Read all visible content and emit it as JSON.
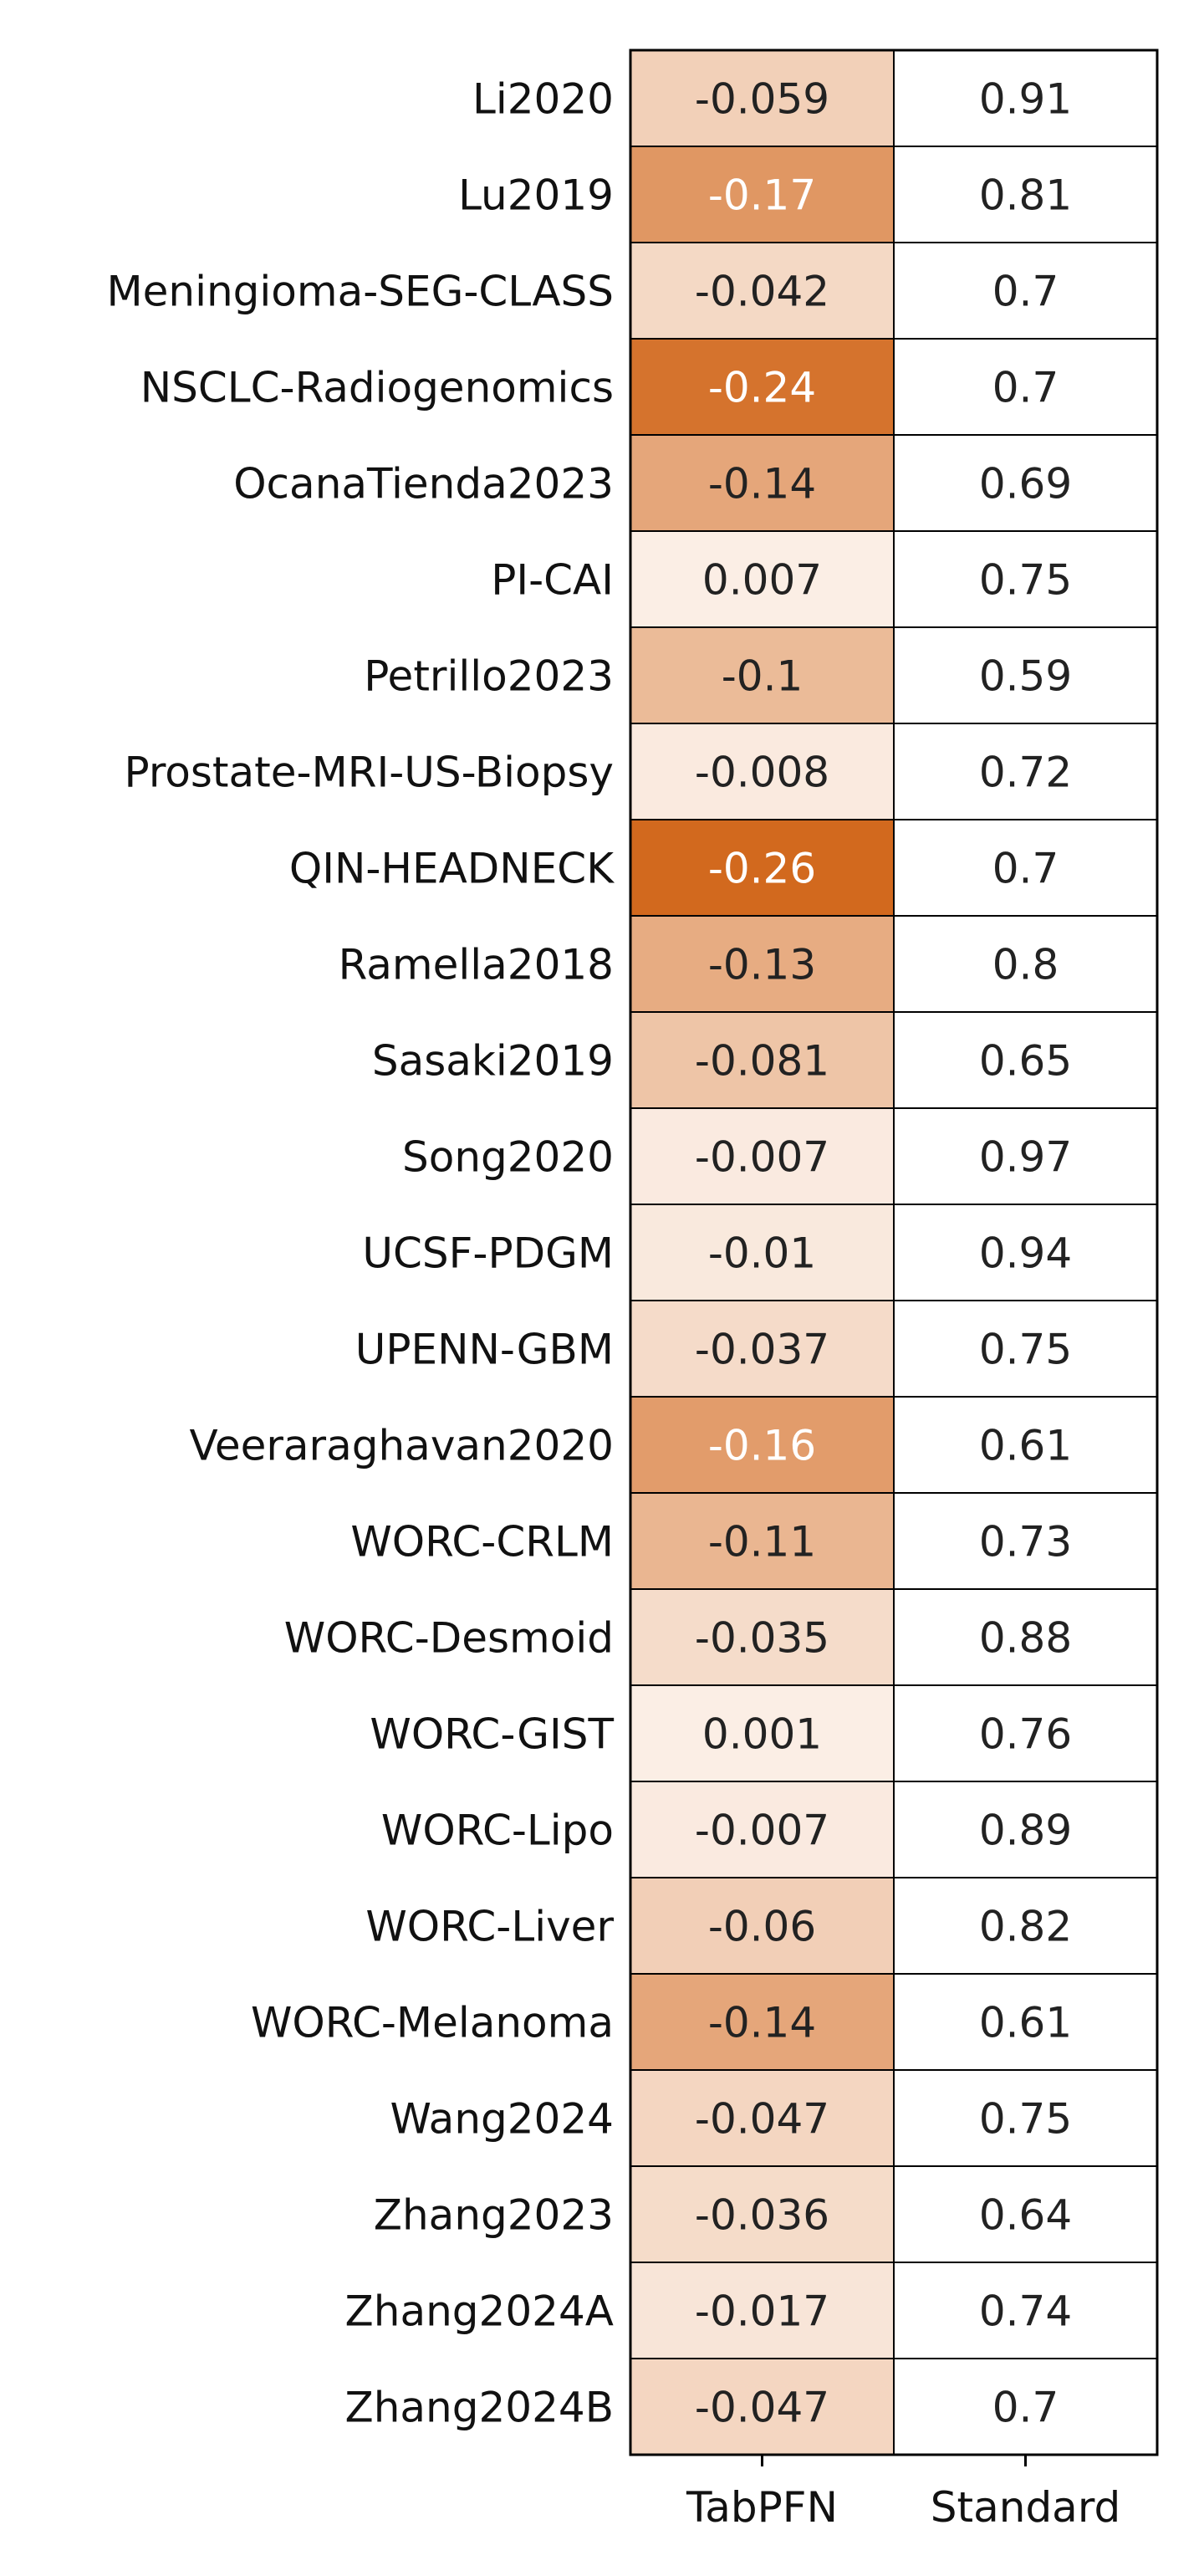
{
  "chart_data": {
    "type": "heatmap",
    "title": "",
    "xlabel": "",
    "ylabel": "",
    "columns": [
      "TabPFN",
      "Standard"
    ],
    "rows": [
      {
        "label": "Li2020",
        "values": [
          "-0.059",
          "0.91"
        ]
      },
      {
        "label": "Lu2019",
        "values": [
          "-0.17",
          "0.81"
        ]
      },
      {
        "label": "Meningioma-SEG-CLASS",
        "values": [
          "-0.042",
          "0.7"
        ]
      },
      {
        "label": "NSCLC-Radiogenomics",
        "values": [
          "-0.24",
          "0.7"
        ]
      },
      {
        "label": "OcanaTienda2023",
        "values": [
          "-0.14",
          "0.69"
        ]
      },
      {
        "label": "PI-CAI",
        "values": [
          "0.007",
          "0.75"
        ]
      },
      {
        "label": "Petrillo2023",
        "values": [
          "-0.1",
          "0.59"
        ]
      },
      {
        "label": "Prostate-MRI-US-Biopsy",
        "values": [
          "-0.008",
          "0.72"
        ]
      },
      {
        "label": "QIN-HEADNECK",
        "values": [
          "-0.26",
          "0.7"
        ]
      },
      {
        "label": "Ramella2018",
        "values": [
          "-0.13",
          "0.8"
        ]
      },
      {
        "label": "Sasaki2019",
        "values": [
          "-0.081",
          "0.65"
        ]
      },
      {
        "label": "Song2020",
        "values": [
          "-0.007",
          "0.97"
        ]
      },
      {
        "label": "UCSF-PDGM",
        "values": [
          "-0.01",
          "0.94"
        ]
      },
      {
        "label": "UPENN-GBM",
        "values": [
          "-0.037",
          "0.75"
        ]
      },
      {
        "label": "Veeraraghavan2020",
        "values": [
          "-0.16",
          "0.61"
        ]
      },
      {
        "label": "WORC-CRLM",
        "values": [
          "-0.11",
          "0.73"
        ]
      },
      {
        "label": "WORC-Desmoid",
        "values": [
          "-0.035",
          "0.88"
        ]
      },
      {
        "label": "WORC-GIST",
        "values": [
          "0.001",
          "0.76"
        ]
      },
      {
        "label": "WORC-Lipo",
        "values": [
          "-0.007",
          "0.89"
        ]
      },
      {
        "label": "WORC-Liver",
        "values": [
          "-0.06",
          "0.82"
        ]
      },
      {
        "label": "WORC-Melanoma",
        "values": [
          "-0.14",
          "0.61"
        ]
      },
      {
        "label": "Wang2024",
        "values": [
          "-0.047",
          "0.75"
        ]
      },
      {
        "label": "Zhang2023",
        "values": [
          "-0.036",
          "0.64"
        ]
      },
      {
        "label": "Zhang2024A",
        "values": [
          "-0.017",
          "0.74"
        ]
      },
      {
        "label": "Zhang2024B",
        "values": [
          "-0.047",
          "0.7"
        ]
      }
    ],
    "colors": {
      "diverging_max": "#d2691e",
      "neutral": "#fbeee5",
      "standard_fill": "#ffffff",
      "light_text": "#ffffff",
      "dark_text": "#222222",
      "grid": "#000000"
    }
  }
}
